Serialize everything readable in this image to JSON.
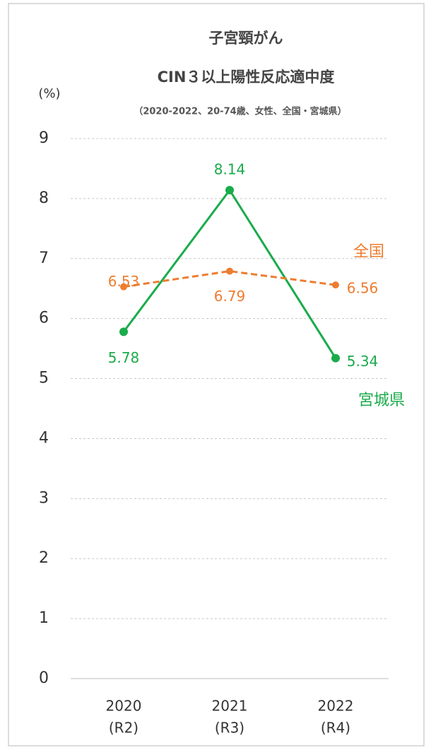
{
  "chart_data": {
    "type": "line",
    "title": "子宮頸がん",
    "subtitle": "CIN３以上陽性反応適中度",
    "note": "（2020-2022、20-74歳、女性、全国・宮城県）",
    "y_label": "(%)",
    "categories": [
      [
        "2020",
        "(R2)"
      ],
      [
        "2021",
        "(R3)"
      ],
      [
        "2022",
        "(R4)"
      ]
    ],
    "series": [
      {
        "name": "宮城県",
        "color": "#1aab4b",
        "dashed": false,
        "values": [
          5.78,
          8.14,
          5.34
        ]
      },
      {
        "name": "全国",
        "color": "#ed7d31",
        "dashed": true,
        "values": [
          6.53,
          6.79,
          6.56
        ]
      }
    ],
    "ylim": [
      0,
      9
    ],
    "yticks": [
      0,
      1,
      2,
      3,
      4,
      5,
      6,
      7,
      8,
      9
    ],
    "grid": true
  }
}
